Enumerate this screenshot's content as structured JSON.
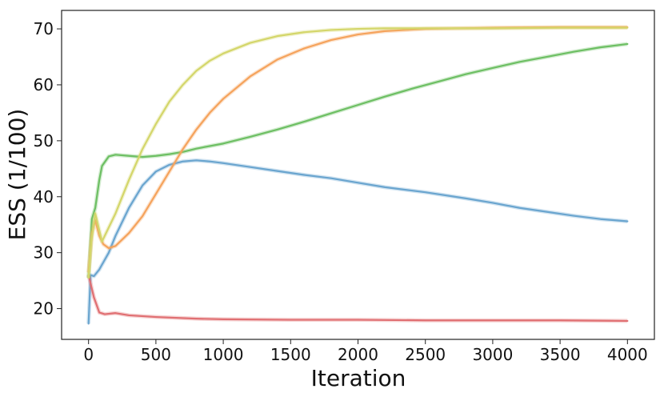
{
  "chart_data": {
    "type": "line",
    "title": "",
    "xlabel": "Iteration",
    "ylabel": "ESS (1/100)",
    "xlim": [
      -200,
      4200
    ],
    "ylim": [
      14.5,
      73.3
    ],
    "xticks": [
      0,
      500,
      1000,
      1500,
      2000,
      2500,
      3000,
      3500,
      4000
    ],
    "yticks": [
      20,
      30,
      40,
      50,
      60,
      70
    ],
    "grid": false,
    "legend": "none",
    "series": [
      {
        "color": "#6aa5cf",
        "points": [
          [
            0,
            17.3
          ],
          [
            15,
            26
          ],
          [
            40,
            25.8
          ],
          [
            80,
            27
          ],
          [
            150,
            30
          ],
          [
            200,
            33
          ],
          [
            300,
            38
          ],
          [
            400,
            42
          ],
          [
            500,
            44.5
          ],
          [
            600,
            45.7
          ],
          [
            700,
            46.3
          ],
          [
            800,
            46.5
          ],
          [
            900,
            46.3
          ],
          [
            1000,
            46
          ],
          [
            1200,
            45.3
          ],
          [
            1400,
            44.6
          ],
          [
            1600,
            43.9
          ],
          [
            1800,
            43.3
          ],
          [
            2000,
            42.5
          ],
          [
            2200,
            41.7
          ],
          [
            2500,
            40.8
          ],
          [
            2800,
            39.7
          ],
          [
            3000,
            38.9
          ],
          [
            3200,
            38
          ],
          [
            3400,
            37.3
          ],
          [
            3600,
            36.6
          ],
          [
            3800,
            36
          ],
          [
            4000,
            35.6
          ]
        ]
      },
      {
        "color": "#e06f72",
        "points": [
          [
            0,
            26
          ],
          [
            15,
            24.5
          ],
          [
            40,
            22
          ],
          [
            80,
            19.3
          ],
          [
            120,
            19
          ],
          [
            200,
            19.2
          ],
          [
            300,
            18.8
          ],
          [
            500,
            18.5
          ],
          [
            800,
            18.2
          ],
          [
            1000,
            18.1
          ],
          [
            1500,
            18
          ],
          [
            2000,
            18
          ],
          [
            2500,
            17.9
          ],
          [
            3000,
            17.9
          ],
          [
            3500,
            17.9
          ],
          [
            4000,
            17.8
          ]
        ]
      },
      {
        "color": "#6dbf63",
        "points": [
          [
            0,
            25.5
          ],
          [
            25,
            36
          ],
          [
            50,
            38
          ],
          [
            80,
            43
          ],
          [
            100,
            45.5
          ],
          [
            150,
            47.2
          ],
          [
            200,
            47.5
          ],
          [
            300,
            47.3
          ],
          [
            400,
            47.1
          ],
          [
            500,
            47.3
          ],
          [
            600,
            47.6
          ],
          [
            700,
            48
          ],
          [
            800,
            48.6
          ],
          [
            1000,
            49.5
          ],
          [
            1200,
            50.7
          ],
          [
            1400,
            52
          ],
          [
            1600,
            53.4
          ],
          [
            1800,
            54.9
          ],
          [
            2000,
            56.4
          ],
          [
            2200,
            57.9
          ],
          [
            2400,
            59.3
          ],
          [
            2600,
            60.6
          ],
          [
            2800,
            61.9
          ],
          [
            3000,
            63
          ],
          [
            3200,
            64.1
          ],
          [
            3400,
            65
          ],
          [
            3600,
            65.9
          ],
          [
            3800,
            66.7
          ],
          [
            4000,
            67.3
          ]
        ]
      },
      {
        "color": "#f5a35c",
        "points": [
          [
            0,
            26.5
          ],
          [
            25,
            33.5
          ],
          [
            50,
            35.8
          ],
          [
            80,
            33
          ],
          [
            110,
            31.5
          ],
          [
            150,
            30.8
          ],
          [
            200,
            31.2
          ],
          [
            300,
            33.5
          ],
          [
            400,
            36.5
          ],
          [
            500,
            40.5
          ],
          [
            600,
            44.5
          ],
          [
            700,
            48.5
          ],
          [
            800,
            52
          ],
          [
            900,
            55
          ],
          [
            1000,
            57.5
          ],
          [
            1200,
            61.5
          ],
          [
            1400,
            64.5
          ],
          [
            1600,
            66.5
          ],
          [
            1800,
            68
          ],
          [
            2000,
            69
          ],
          [
            2200,
            69.6
          ],
          [
            2500,
            70
          ],
          [
            3000,
            70.2
          ],
          [
            3500,
            70.3
          ],
          [
            4000,
            70.3
          ]
        ]
      },
      {
        "color": "#d4d66a",
        "points": [
          [
            0,
            25.5
          ],
          [
            20,
            32
          ],
          [
            50,
            37
          ],
          [
            80,
            34
          ],
          [
            100,
            32
          ],
          [
            120,
            33
          ],
          [
            200,
            37
          ],
          [
            300,
            43
          ],
          [
            400,
            48.5
          ],
          [
            500,
            53
          ],
          [
            600,
            57
          ],
          [
            700,
            60
          ],
          [
            800,
            62.5
          ],
          [
            900,
            64.3
          ],
          [
            1000,
            65.6
          ],
          [
            1200,
            67.5
          ],
          [
            1400,
            68.7
          ],
          [
            1600,
            69.4
          ],
          [
            1800,
            69.8
          ],
          [
            2000,
            70
          ],
          [
            2200,
            70.1
          ],
          [
            2600,
            70.1
          ],
          [
            3000,
            70.1
          ],
          [
            3500,
            70.2
          ],
          [
            4000,
            70.2
          ]
        ]
      }
    ]
  }
}
